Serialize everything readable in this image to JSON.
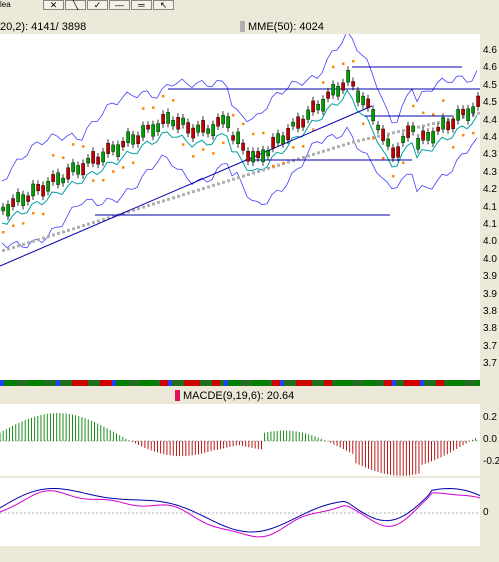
{
  "toolbar": {
    "corner_label": "lea",
    "buttons": [
      {
        "name": "cross-button",
        "glyph": "✕"
      },
      {
        "name": "line-tool-button",
        "glyph": "╲"
      },
      {
        "name": "check-button",
        "glyph": "✓"
      },
      {
        "name": "hline-button",
        "glyph": "—"
      },
      {
        "name": "equal-button",
        "glyph": "═"
      },
      {
        "name": "arrow-tool-button",
        "glyph": "↖"
      }
    ]
  },
  "legend": {
    "bb": "20,2):  4141/  3898",
    "mme": "MME(50):  4024",
    "mme_color": "#b0b0b0"
  },
  "macd": {
    "label": "MACDE(9,19,6):  20.64",
    "color": "#e0105a"
  },
  "axes": {
    "price_ticks": [
      "4.6",
      "4.6",
      "4.5",
      "4.5",
      "4.4",
      "4.4",
      "4.3",
      "4.3",
      "4.2",
      "4.1",
      "4.1",
      "4.0",
      "4.0",
      "3.9",
      "3.9",
      "3.8",
      "3.8",
      "3.7",
      "3.7"
    ],
    "macd_ticks": [
      "0.2",
      "0.0",
      "-0.2"
    ],
    "osc_ticks": [
      "0"
    ]
  },
  "colors": {
    "up_candle": "#00a000",
    "down_candle": "#c00000",
    "bollinger": "#4040ff",
    "ema_mid": "#00a0a0",
    "sar": "#ff8800",
    "trendline": "#0000aa",
    "macd_pos": "#008000",
    "macd_neg": "#b00000",
    "osc_line1": "#0000aa",
    "osc_line2": "#d000d0"
  }
}
